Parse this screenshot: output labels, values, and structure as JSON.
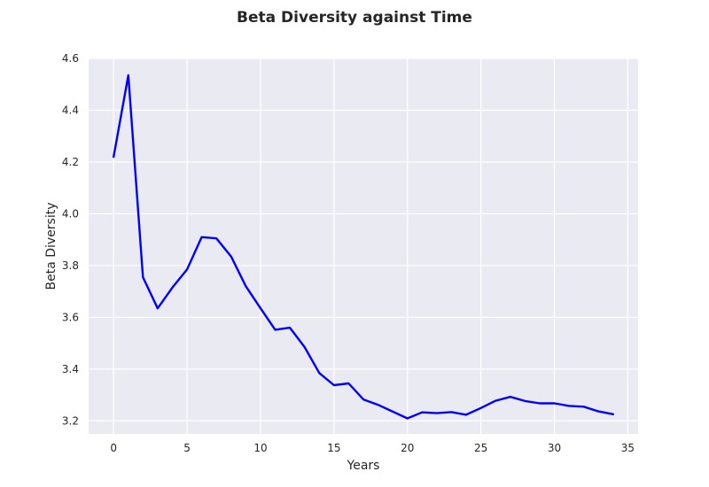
{
  "chart_data": {
    "type": "line",
    "title": "Beta Diversity against Time",
    "xlabel": "Years",
    "ylabel": "Beta Diversity",
    "xlim": [
      -1.7,
      35.7
    ],
    "ylim": [
      3.15,
      4.6
    ],
    "xticks": [
      0,
      5,
      10,
      15,
      20,
      25,
      30,
      35
    ],
    "yticks": [
      3.2,
      3.4,
      3.6,
      3.8,
      4.0,
      4.2,
      4.4,
      4.6
    ],
    "xtick_labels": [
      "0",
      "5",
      "10",
      "15",
      "20",
      "25",
      "30",
      "35"
    ],
    "ytick_labels": [
      "3.2",
      "3.4",
      "3.6",
      "3.8",
      "4.0",
      "4.2",
      "4.4",
      "4.6"
    ],
    "grid": true,
    "legend": "none",
    "background_color": "#eaeaf2",
    "grid_color": "#ffffff",
    "series": [
      {
        "color": "#0000ff",
        "x": [
          0,
          1,
          2,
          3,
          4,
          5,
          6,
          7,
          8,
          9,
          10,
          11,
          12,
          13,
          14,
          15,
          16,
          17,
          18,
          19,
          20,
          21,
          22,
          23,
          24,
          25,
          26,
          27,
          28,
          29,
          30,
          31,
          32,
          33,
          34
        ],
        "values": [
          4.22,
          4.535,
          3.755,
          3.635,
          3.715,
          3.785,
          3.91,
          3.905,
          3.835,
          3.72,
          3.635,
          3.552,
          3.56,
          3.485,
          3.385,
          3.338,
          3.345,
          3.283,
          3.262,
          3.236,
          3.21,
          3.233,
          3.23,
          3.234,
          3.224,
          3.25,
          3.278,
          3.293,
          3.277,
          3.268,
          3.268,
          3.258,
          3.255,
          3.237,
          3.226
        ]
      }
    ]
  }
}
